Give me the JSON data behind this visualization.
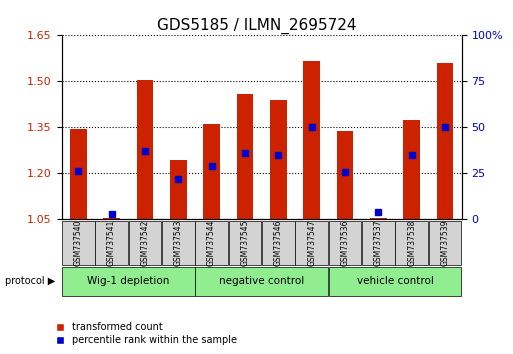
{
  "title": "GDS5185 / ILMN_2695724",
  "samples": [
    "GSM737540",
    "GSM737541",
    "GSM737542",
    "GSM737543",
    "GSM737544",
    "GSM737545",
    "GSM737546",
    "GSM737547",
    "GSM737536",
    "GSM737537",
    "GSM737538",
    "GSM737539"
  ],
  "red_values": [
    1.345,
    1.055,
    1.505,
    1.245,
    1.36,
    1.46,
    1.44,
    1.565,
    1.34,
    1.055,
    1.375,
    1.56
  ],
  "blue_values": [
    0.265,
    0.03,
    0.37,
    0.22,
    0.29,
    0.36,
    0.35,
    0.505,
    0.26,
    0.04,
    0.35,
    0.505
  ],
  "groups": [
    {
      "label": "Wig-1 depletion",
      "start": 0,
      "end": 4
    },
    {
      "label": "negative control",
      "start": 4,
      "end": 8
    },
    {
      "label": "vehicle control",
      "start": 8,
      "end": 12
    }
  ],
  "ylim_left": [
    1.05,
    1.65
  ],
  "ylim_right": [
    0,
    100
  ],
  "yticks_left": [
    1.05,
    1.2,
    1.35,
    1.5,
    1.65
  ],
  "yticks_right": [
    0,
    25,
    50,
    75,
    100
  ],
  "bar_color": "#cc2200",
  "dot_color": "#0000cc",
  "group_color": "#90ee90",
  "axis_label_color_left": "#cc2200",
  "axis_label_color_right": "#0000cc",
  "bar_width": 0.5,
  "base": 1.05
}
